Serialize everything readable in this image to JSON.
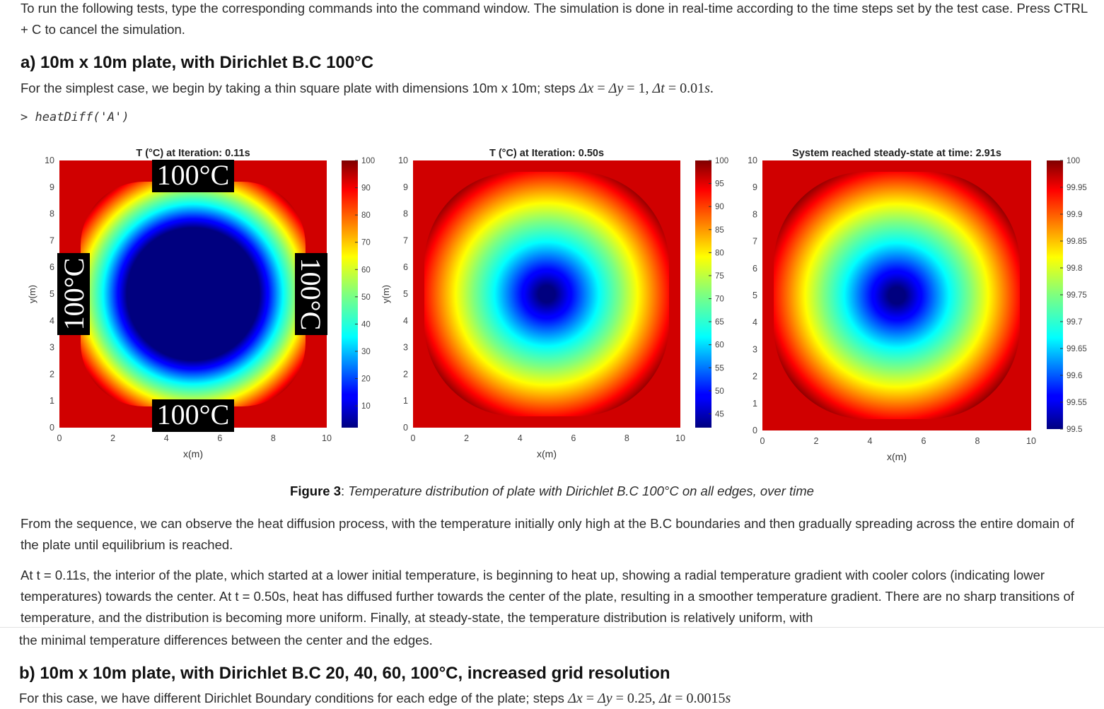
{
  "intro": "To run the following tests, type the corresponding commands into the command window. The simulation is done in real-time according to the time steps set by the test case. Press CTRL + C to cancel the simulation.",
  "section_a": {
    "heading": "a) 10m x 10m plate, with Dirichlet B.C 100°C",
    "text": "For the simplest case, we begin by taking a thin square plate with dimensions 10m x 10m; steps",
    "math": {
      "dx": "Δx",
      "eq1": " = ",
      "dy": "Δy",
      "eq2": " = 1,  ",
      "dt": "Δt",
      "eq3": " = 0.01",
      "unit": "s",
      "dot": "."
    },
    "command_prompt": ">",
    "command_fn": "heatDiff(",
    "command_arg": "'A'",
    "command_close": ")"
  },
  "figure": {
    "caption_label": "Figure 3",
    "caption_sep": ": ",
    "caption_text": "Temperature distribution of plate with Dirichlet B.C 100°C on all edges, over time"
  },
  "paragraph1": "From the sequence, we can observe the heat diffusion process, with the temperature initially only high at the B.C boundaries and then gradually spreading across the entire domain of the plate until equilibrium is reached.",
  "paragraph2": "At t = 0.11s, the interior of the plate, which started at a lower initial temperature, is beginning to heat up, showing a radial temperature gradient with cooler colors (indicating lower temperatures) towards the center. At t = 0.50s, heat has diffused further towards the center of the plate, resulting in a smoother temperature gradient. There are no sharp transitions of temperature, and the distribution is becoming more uniform. Finally, at steady-state, the temperature distribution is relatively uniform, with",
  "paragraph2_tail": "the minimal temperature differences between the center and the edges.",
  "section_b": {
    "heading": "b) 10m x 10m plate, with Dirichlet B.C 20, 40, 60, 100°C, increased grid resolution",
    "text_partial": "For this case, we have different Dirichlet Boundary conditions for each edge of the plate; steps",
    "math": {
      "dx": "Δx",
      "eq1": " = ",
      "dy": "Δy",
      "eq2": " = 0.25,  ",
      "dt": "Δt",
      "eq3": " = 0.0015",
      "unit": "s"
    }
  },
  "chart_data": [
    {
      "type": "heatmap",
      "title": "T (°C) at Iteration: 0.11s",
      "xlabel": "x(m)",
      "ylabel": "y(m)",
      "xlim": [
        0,
        10
      ],
      "ylim": [
        0,
        10
      ],
      "xticks": [
        "0",
        "2",
        "4",
        "6",
        "8",
        "10"
      ],
      "yticks": [
        "0",
        "1",
        "2",
        "3",
        "4",
        "5",
        "6",
        "7",
        "8",
        "9",
        "10"
      ],
      "colormap": "jet",
      "clim": [
        2,
        100
      ],
      "colorbar_ticks": [
        "10",
        "20",
        "30",
        "40",
        "50",
        "60",
        "70",
        "80",
        "90",
        "100"
      ],
      "field": {
        "center_value": 2,
        "edge_value": 100,
        "shape": "rounded-square"
      },
      "annotations": [
        {
          "text": "100°C",
          "edge": "top"
        },
        {
          "text": "100°C",
          "edge": "bottom"
        },
        {
          "text": "100°C",
          "edge": "left"
        },
        {
          "text": "100°C",
          "edge": "right"
        }
      ]
    },
    {
      "type": "heatmap",
      "title": "T (°C) at Iteration: 0.50s",
      "xlabel": "x(m)",
      "ylabel": "y(m)",
      "xlim": [
        0,
        10
      ],
      "ylim": [
        0,
        10
      ],
      "xticks": [
        "0",
        "2",
        "4",
        "6",
        "8",
        "10"
      ],
      "yticks": [
        "0",
        "1",
        "2",
        "3",
        "4",
        "5",
        "6",
        "7",
        "8",
        "9",
        "10"
      ],
      "colormap": "jet",
      "clim": [
        42,
        100
      ],
      "colorbar_ticks": [
        "45",
        "50",
        "55",
        "60",
        "65",
        "70",
        "75",
        "80",
        "85",
        "90",
        "95",
        "100"
      ],
      "field": {
        "center_value": 42,
        "edge_value": 100,
        "shape": "rounded-square"
      },
      "annotations": []
    },
    {
      "type": "heatmap",
      "title": "System reached steady-state at time: 2.91s",
      "xlabel": "x(m)",
      "ylabel": "",
      "xlim": [
        0,
        10
      ],
      "ylim": [
        0,
        10
      ],
      "xticks": [
        "0",
        "2",
        "4",
        "6",
        "8",
        "10"
      ],
      "yticks": [
        "0",
        "1",
        "2",
        "3",
        "4",
        "5",
        "6",
        "7",
        "8",
        "9",
        "10"
      ],
      "colormap": "jet",
      "clim": [
        99.5,
        100
      ],
      "colorbar_ticks": [
        "99.5",
        "99.55",
        "99.6",
        "99.65",
        "99.7",
        "99.75",
        "99.8",
        "99.85",
        "99.9",
        "99.95",
        "100"
      ],
      "field": {
        "center_value": 99.5,
        "edge_value": 100,
        "shape": "rounded-square"
      },
      "annotations": []
    }
  ]
}
